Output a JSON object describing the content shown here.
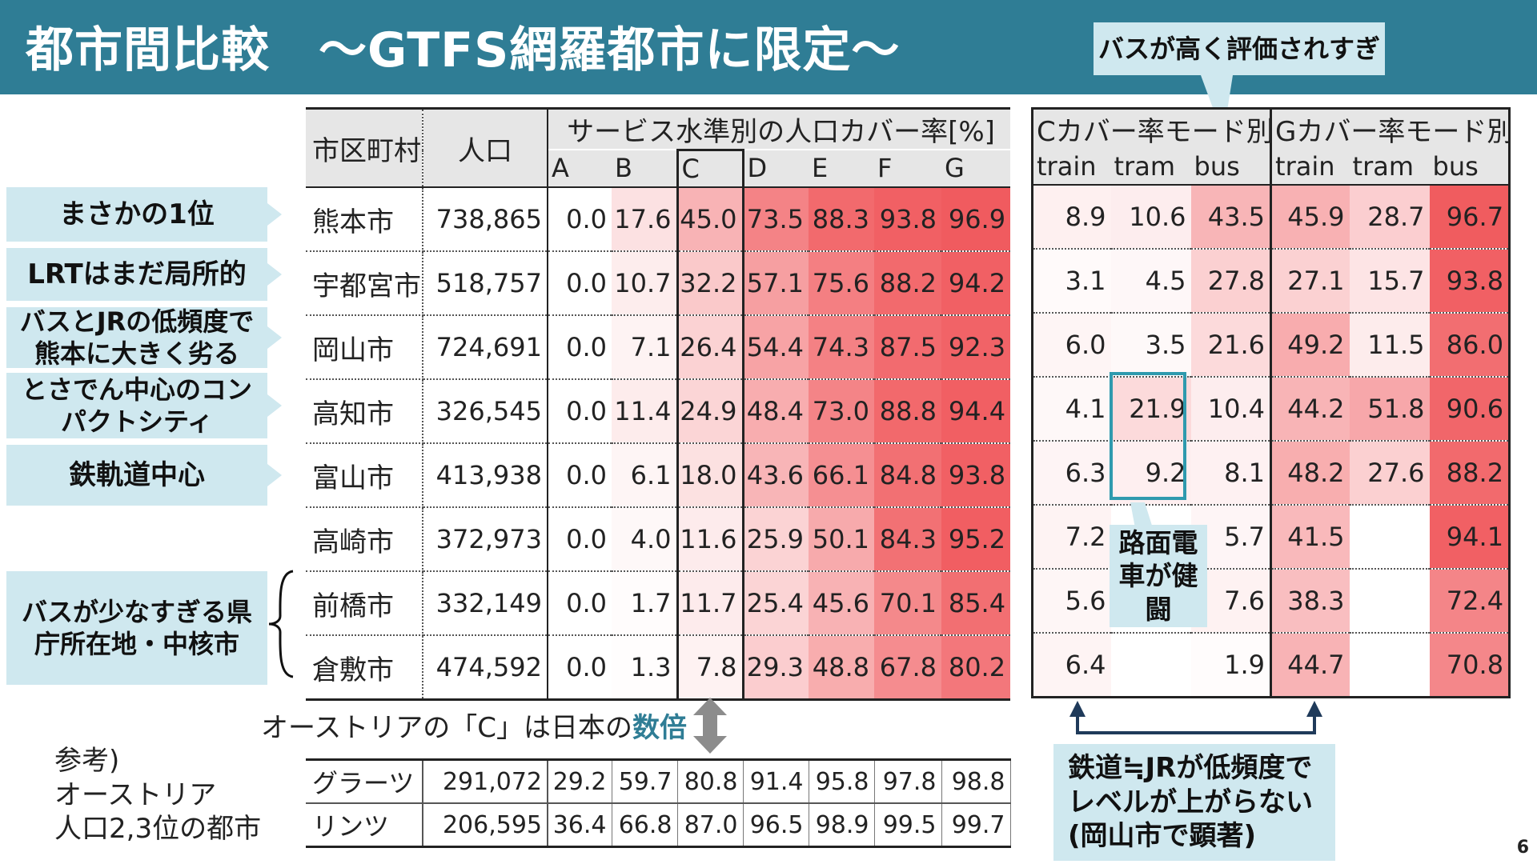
{
  "title": "都市間比較　～GTFS網羅都市に限定～",
  "page_number": "6",
  "callouts": {
    "bus_over": "バスが高く評価されすぎ",
    "tram_fight": "路面電車が健闘",
    "rail_low": "鉄道≒JRが低頻度でレベルが上がらない(岡山市で顕著)",
    "austria_prefix": "オーストリアの「C」は日本の",
    "austria_emph": "数倍"
  },
  "side_labels": [
    "まさかの1位",
    "LRTはまだ局所的",
    "バスとJRの低頻度で熊本に大きく劣る",
    "とさでん中心のコンパクトシティ",
    "鉄軌道中心",
    "バスが少なすぎる県庁所在地・中核市"
  ],
  "main_table": {
    "col_city": "市区町村",
    "col_pop": "人口",
    "group": "サービス水準別の人口カバー率[%]",
    "levels": [
      "A",
      "B",
      "C",
      "D",
      "E",
      "F",
      "G"
    ],
    "rows": [
      {
        "city": "熊本市",
        "pop": "738,865",
        "v": [
          "0.0",
          "17.6",
          "45.0",
          "73.5",
          "88.3",
          "93.8",
          "96.9"
        ]
      },
      {
        "city": "宇都宮市",
        "pop": "518,757",
        "v": [
          "0.0",
          "10.7",
          "32.2",
          "57.1",
          "75.6",
          "88.2",
          "94.2"
        ]
      },
      {
        "city": "岡山市",
        "pop": "724,691",
        "v": [
          "0.0",
          "7.1",
          "26.4",
          "54.4",
          "74.3",
          "87.5",
          "92.3"
        ]
      },
      {
        "city": "高知市",
        "pop": "326,545",
        "v": [
          "0.0",
          "11.4",
          "24.9",
          "48.4",
          "73.0",
          "88.8",
          "94.4"
        ]
      },
      {
        "city": "富山市",
        "pop": "413,938",
        "v": [
          "0.0",
          "6.1",
          "18.0",
          "43.6",
          "66.1",
          "84.8",
          "93.8"
        ]
      },
      {
        "city": "高崎市",
        "pop": "372,973",
        "v": [
          "0.0",
          "4.0",
          "11.6",
          "25.9",
          "50.1",
          "84.3",
          "95.2"
        ]
      },
      {
        "city": "前橋市",
        "pop": "332,149",
        "v": [
          "0.0",
          "1.7",
          "11.7",
          "25.4",
          "45.6",
          "70.1",
          "85.4"
        ]
      },
      {
        "city": "倉敷市",
        "pop": "474,592",
        "v": [
          "0.0",
          "1.3",
          "7.8",
          "29.3",
          "48.8",
          "67.8",
          "80.2"
        ]
      }
    ]
  },
  "mode_table": {
    "c_header": "Cカバー率モード別",
    "g_header": "Gカバー率モード別",
    "modes": [
      "train",
      "tram",
      "bus"
    ],
    "rows": [
      {
        "c": [
          "8.9",
          "10.6",
          "43.5"
        ],
        "g": [
          "45.9",
          "28.7",
          "96.7"
        ]
      },
      {
        "c": [
          "3.1",
          "4.5",
          "27.8"
        ],
        "g": [
          "27.1",
          "15.7",
          "93.8"
        ]
      },
      {
        "c": [
          "6.0",
          "3.5",
          "21.6"
        ],
        "g": [
          "49.2",
          "11.5",
          "86.0"
        ]
      },
      {
        "c": [
          "4.1",
          "21.9",
          "10.4"
        ],
        "g": [
          "44.2",
          "51.8",
          "90.6"
        ]
      },
      {
        "c": [
          "6.3",
          "9.2",
          "8.1"
        ],
        "g": [
          "48.2",
          "27.6",
          "88.2"
        ]
      },
      {
        "c": [
          "7.2",
          "",
          "5.7"
        ],
        "g": [
          "41.5",
          "",
          "94.1"
        ]
      },
      {
        "c": [
          "5.6",
          "",
          "7.6"
        ],
        "g": [
          "38.3",
          "",
          "72.4"
        ]
      },
      {
        "c": [
          "6.4",
          "",
          "1.9"
        ],
        "g": [
          "44.7",
          "",
          "70.8"
        ]
      }
    ]
  },
  "reference": {
    "label": [
      "参考)",
      "オーストリア",
      "人口2,3位の都市"
    ],
    "rows": [
      {
        "city": "グラーツ",
        "pop": "291,072",
        "v": [
          "29.2",
          "59.7",
          "80.8",
          "91.4",
          "95.8",
          "97.8",
          "98.8"
        ]
      },
      {
        "city": "リンツ",
        "pop": "206,595",
        "v": [
          "36.4",
          "66.8",
          "87.0",
          "96.5",
          "98.9",
          "99.5",
          "99.7"
        ]
      }
    ]
  },
  "colors": {
    "header_bg": "#2f7d95",
    "callout_bg": "#cfe8ef",
    "heat_max": "#f0565a",
    "accent_text": "#2f7d95"
  }
}
